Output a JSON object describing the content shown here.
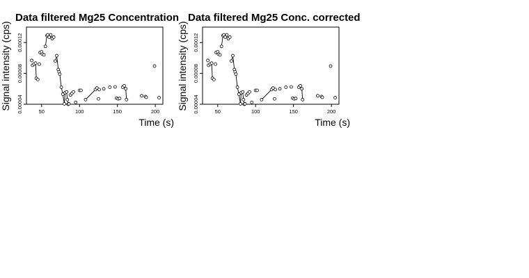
{
  "chart_data": [
    {
      "type": "scatter",
      "title": "Data filtered Mg25 Concentration",
      "xlabel": "Time (s)",
      "ylabel": "Signal intensity (cps)",
      "xticks": [
        50,
        100,
        150,
        200
      ],
      "yticks": [
        "0.00004",
        "0.00008",
        "0.00012"
      ],
      "ytick_values": [
        4e-05,
        8e-05,
        0.00012
      ],
      "xlim": [
        30,
        210
      ],
      "ylim": [
        4e-05,
        0.00014
      ],
      "grid": false,
      "points": [
        [
          37,
          9.68e-05
        ],
        [
          38,
          9.05e-05
        ],
        [
          40,
          9.2e-05
        ],
        [
          42,
          9.33e-05
        ],
        [
          43,
          7.36e-05
        ],
        [
          45,
          7.2e-05
        ],
        [
          47,
          9.2e-05
        ],
        [
          48,
          0.000107
        ],
        [
          50,
          0.000108
        ],
        [
          51,
          0.000105
        ],
        [
          53,
          0.000104
        ],
        [
          55,
          0.000115
        ],
        [
          57,
          0.000129
        ],
        [
          58,
          0.00013
        ],
        [
          60,
          0.000127
        ],
        [
          62,
          0.00013
        ],
        [
          64,
          0.000125
        ],
        [
          66,
          0.000127
        ],
        [
          68,
          9.6e-05
        ],
        [
          70,
          0.000103
        ],
        [
          72,
          8.5e-05
        ],
        [
          73,
          8.2e-05
        ],
        [
          74,
          7.9e-05
        ],
        [
          76,
          6.2e-05
        ],
        [
          78,
          5.3e-05
        ],
        [
          80,
          4.05e-05
        ],
        [
          81,
          5.5e-05
        ],
        [
          83,
          5.6e-05
        ],
        [
          84,
          4.6e-05
        ],
        [
          85,
          4e-05
        ],
        [
          86,
          4.05e-05
        ],
        [
          88,
          5.2e-05
        ],
        [
          90,
          5.4e-05
        ],
        [
          92,
          5.6e-05
        ],
        [
          95,
          4.25e-05
        ],
        [
          100,
          5.8e-05
        ],
        [
          102,
          5.8e-05
        ],
        [
          108,
          4.6e-05
        ],
        [
          121,
          5.9e-05
        ],
        [
          123,
          6.1e-05
        ],
        [
          125,
          4.7e-05
        ],
        [
          126,
          5.9e-05
        ],
        [
          132,
          6e-05
        ],
        [
          140,
          6.2e-05
        ],
        [
          147,
          6.25e-05
        ],
        [
          149,
          4.8e-05
        ],
        [
          151,
          4.7e-05
        ],
        [
          153,
          4.75e-05
        ],
        [
          157,
          6.2e-05
        ],
        [
          159,
          6.4e-05
        ],
        [
          161,
          6e-05
        ],
        [
          162,
          4.6e-05
        ],
        [
          182,
          5.1e-05
        ],
        [
          187,
          5e-05
        ],
        [
          188,
          4.9e-05
        ],
        [
          199,
          8.95e-05
        ],
        [
          205,
          4.85e-05
        ]
      ],
      "segments": [
        [
          3,
          4
        ],
        [
          7,
          8
        ],
        [
          9,
          10
        ],
        [
          11,
          12
        ],
        [
          12,
          13
        ],
        [
          13,
          14
        ],
        [
          14,
          15
        ],
        [
          15,
          16
        ],
        [
          16,
          17
        ],
        [
          18,
          19
        ],
        [
          19,
          20
        ],
        [
          20,
          21
        ],
        [
          21,
          22
        ],
        [
          22,
          23
        ],
        [
          23,
          24
        ],
        [
          24,
          25
        ],
        [
          25,
          26
        ],
        [
          27,
          28
        ],
        [
          28,
          29
        ],
        [
          29,
          30
        ],
        [
          37,
          38
        ],
        [
          45,
          46
        ],
        [
          49,
          50
        ],
        [
          50,
          51
        ]
      ]
    },
    {
      "type": "scatter",
      "title": "Data filtered Mg25 Conc. corrected",
      "xlabel": "Time (s)",
      "ylabel": "Signal intensity (cps)",
      "xticks": [
        50,
        100,
        150,
        200
      ],
      "yticks": [
        "0.00004",
        "0.00008",
        "0.00012"
      ],
      "ytick_values": [
        4e-05,
        8e-05,
        0.00012
      ],
      "xlim": [
        30,
        210
      ],
      "ylim": [
        4e-05,
        0.00014
      ],
      "grid": false,
      "points": [
        [
          37,
          9.68e-05
        ],
        [
          38,
          9.05e-05
        ],
        [
          40,
          9.2e-05
        ],
        [
          42,
          9.33e-05
        ],
        [
          43,
          7.36e-05
        ],
        [
          45,
          7.2e-05
        ],
        [
          47,
          9.2e-05
        ],
        [
          48,
          0.000107
        ],
        [
          50,
          0.000108
        ],
        [
          51,
          0.000105
        ],
        [
          53,
          0.000104
        ],
        [
          55,
          0.000115
        ],
        [
          57,
          0.000129
        ],
        [
          58,
          0.00013
        ],
        [
          60,
          0.000127
        ],
        [
          62,
          0.00013
        ],
        [
          64,
          0.000125
        ],
        [
          66,
          0.000127
        ],
        [
          68,
          9.6e-05
        ],
        [
          70,
          0.000103
        ],
        [
          72,
          8.5e-05
        ],
        [
          73,
          8.2e-05
        ],
        [
          74,
          7.9e-05
        ],
        [
          76,
          6.2e-05
        ],
        [
          78,
          5.3e-05
        ],
        [
          80,
          4.05e-05
        ],
        [
          81,
          5.5e-05
        ],
        [
          83,
          5.6e-05
        ],
        [
          84,
          4.6e-05
        ],
        [
          85,
          4e-05
        ],
        [
          86,
          4.05e-05
        ],
        [
          88,
          5.2e-05
        ],
        [
          90,
          5.4e-05
        ],
        [
          92,
          5.6e-05
        ],
        [
          95,
          4.25e-05
        ],
        [
          100,
          5.8e-05
        ],
        [
          102,
          5.8e-05
        ],
        [
          108,
          4.6e-05
        ],
        [
          121,
          5.9e-05
        ],
        [
          123,
          6.1e-05
        ],
        [
          125,
          4.7e-05
        ],
        [
          126,
          5.9e-05
        ],
        [
          132,
          6e-05
        ],
        [
          140,
          6.2e-05
        ],
        [
          147,
          6.25e-05
        ],
        [
          149,
          4.8e-05
        ],
        [
          151,
          4.7e-05
        ],
        [
          153,
          4.75e-05
        ],
        [
          157,
          6.2e-05
        ],
        [
          159,
          6.4e-05
        ],
        [
          161,
          6e-05
        ],
        [
          162,
          4.6e-05
        ],
        [
          182,
          5.1e-05
        ],
        [
          187,
          5e-05
        ],
        [
          188,
          4.9e-05
        ],
        [
          199,
          8.95e-05
        ],
        [
          205,
          4.85e-05
        ]
      ],
      "segments": [
        [
          3,
          4
        ],
        [
          7,
          8
        ],
        [
          9,
          10
        ],
        [
          11,
          12
        ],
        [
          12,
          13
        ],
        [
          13,
          14
        ],
        [
          14,
          15
        ],
        [
          15,
          16
        ],
        [
          16,
          17
        ],
        [
          18,
          19
        ],
        [
          19,
          20
        ],
        [
          20,
          21
        ],
        [
          21,
          22
        ],
        [
          22,
          23
        ],
        [
          23,
          24
        ],
        [
          24,
          25
        ],
        [
          25,
          26
        ],
        [
          27,
          28
        ],
        [
          28,
          29
        ],
        [
          29,
          30
        ],
        [
          37,
          38
        ],
        [
          45,
          46
        ],
        [
          49,
          50
        ],
        [
          50,
          51
        ]
      ]
    }
  ]
}
